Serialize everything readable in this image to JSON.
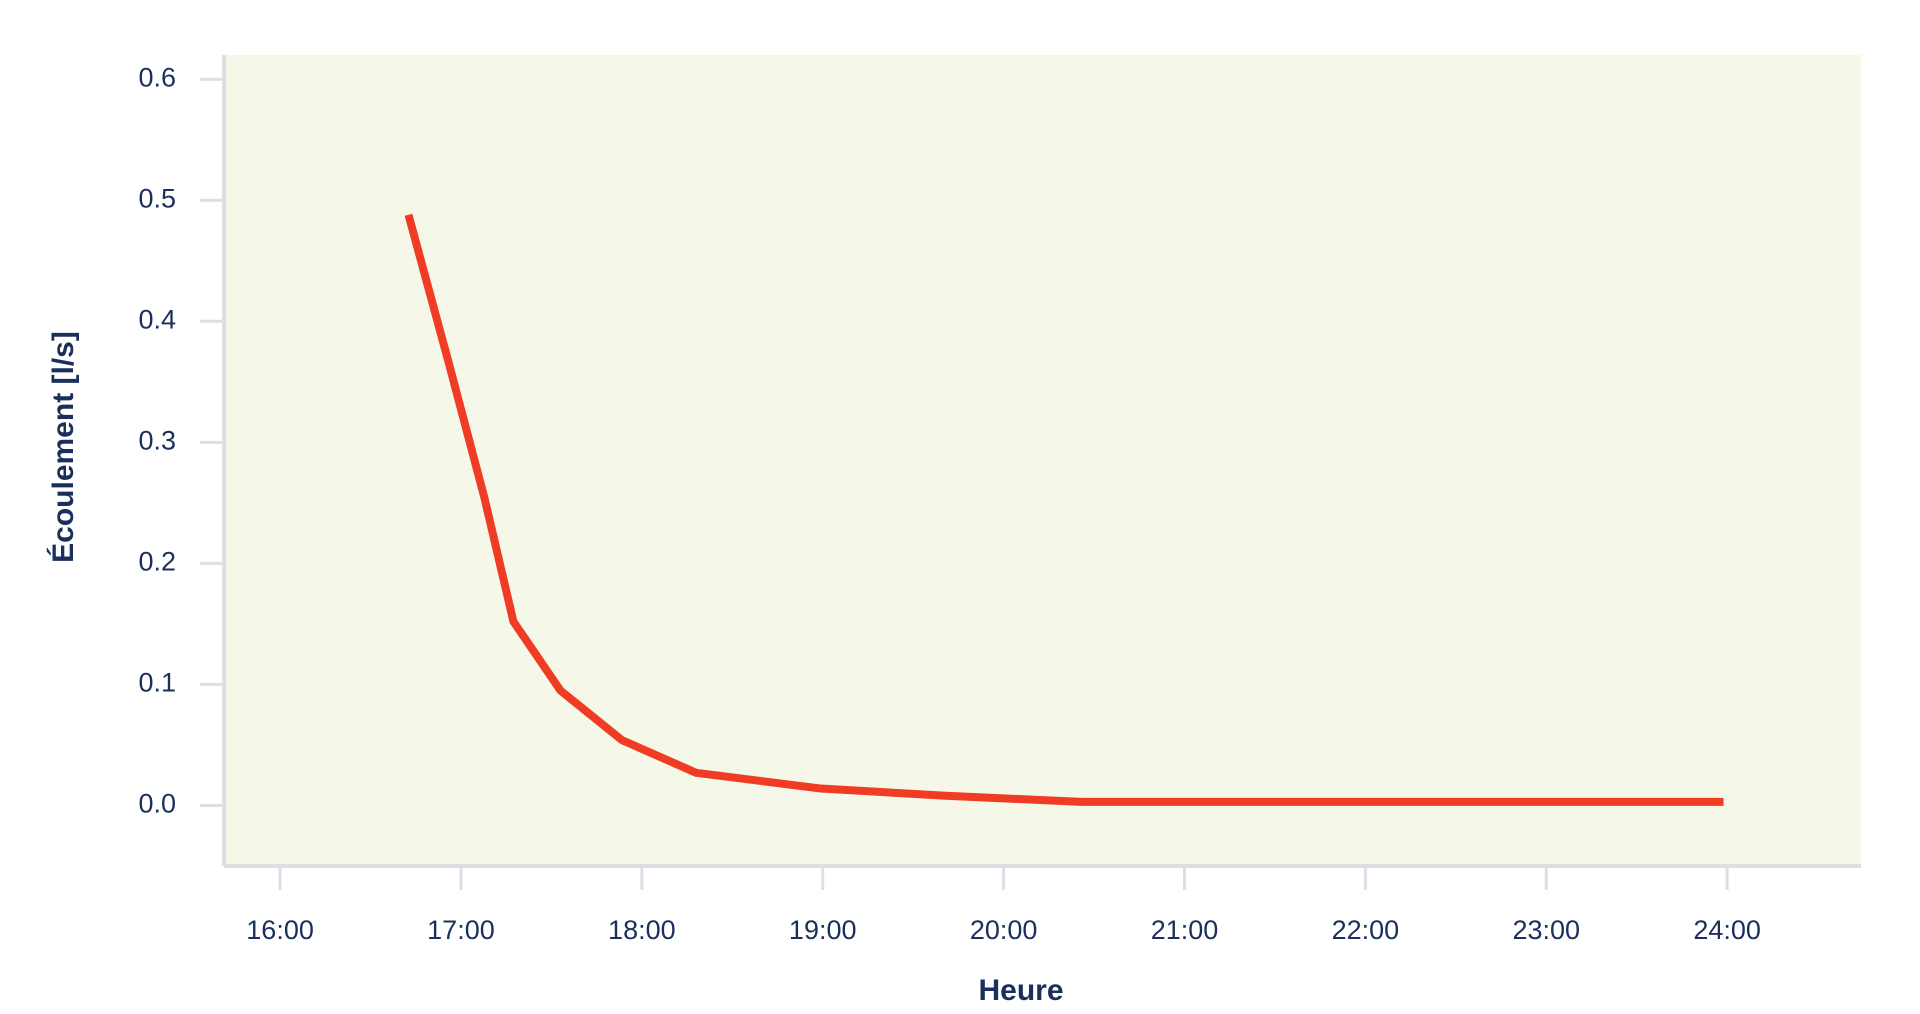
{
  "chart_data": {
    "type": "line",
    "x_label": "Heure",
    "y_label": "Écoulement [l/s]",
    "x": [
      16.71,
      16.93,
      17.13,
      17.29,
      17.55,
      17.89,
      18.3,
      18.99,
      19.68,
      20.43,
      23.98
    ],
    "series": [
      {
        "color": "#f03c24",
        "values": [
          0.488,
          0.367,
          0.254,
          0.152,
          0.095,
          0.054,
          0.027,
          0.014,
          0.008,
          0.003,
          0.003
        ]
      }
    ],
    "xlim": [
      15.69,
      24.74
    ],
    "xticks": [
      {
        "value": 16,
        "label": "16:00"
      },
      {
        "value": 17,
        "label": "17:00"
      },
      {
        "value": 18,
        "label": "18:00"
      },
      {
        "value": 19,
        "label": "19:00"
      },
      {
        "value": 20,
        "label": "20:00"
      },
      {
        "value": 21,
        "label": "21:00"
      },
      {
        "value": 22,
        "label": "22:00"
      },
      {
        "value": 23,
        "label": "23:00"
      },
      {
        "value": 24,
        "label": "24:00"
      }
    ],
    "ylim": [
      -0.05,
      0.62
    ],
    "yticks": [
      {
        "value": 0,
        "label": "0.0"
      },
      0.1,
      0.2,
      0.3,
      0.4,
      0.5,
      0.6
    ],
    "plot_background": "#f5f8e8",
    "grid": false
  }
}
